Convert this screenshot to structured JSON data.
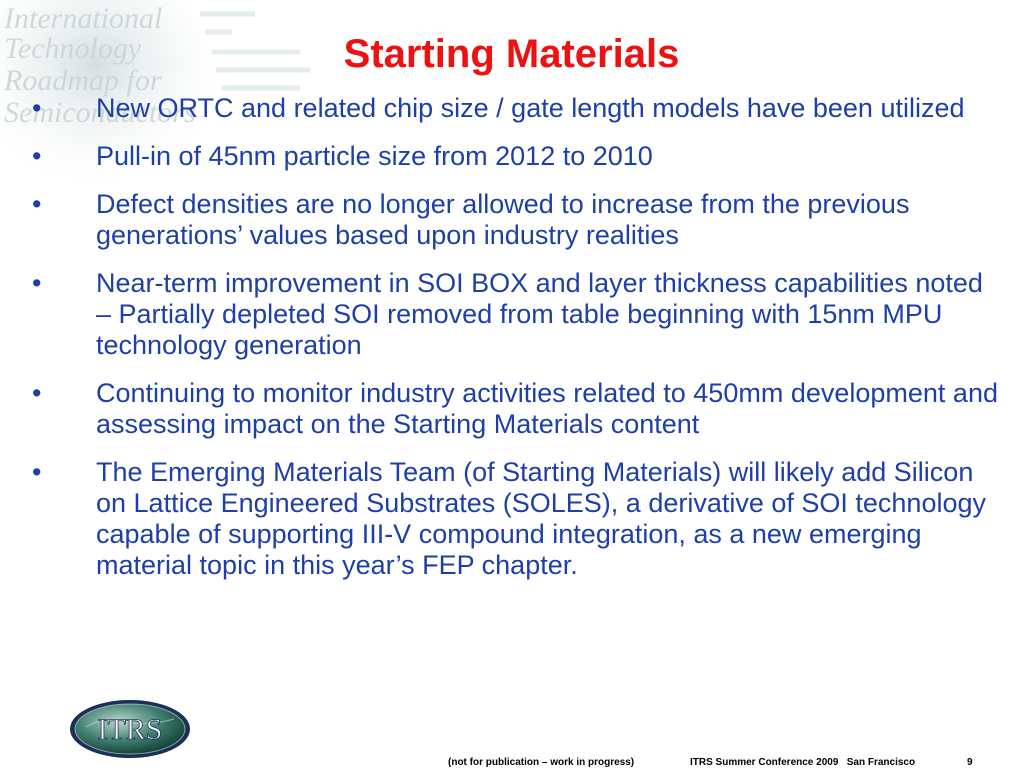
{
  "slide": {
    "title": "Starting Materials",
    "bullet_symbol": "•",
    "bullets": [
      "New ORTC and related chip size / gate length models have been utilized",
      "Pull-in of 45nm particle size from 2012 to 2010",
      "Defect densities are no longer allowed to increase from the previous generations’ values based upon industry realities",
      "Near-term improvement in SOI BOX and layer thickness capabilities noted – Partially depleted SOI removed from table beginning with 15nm MPU technology generation",
      "Continuing to monitor industry activities related to 450mm development and assessing impact on the Starting Materials content",
      "The Emerging Materials Team (of Starting Materials) will likely add Silicon on Lattice Engineered Substrates (SOLES), a derivative of SOI technology capable of supporting III-V compound integration, as a new emerging material topic in this year’s FEP chapter."
    ]
  },
  "watermark": {
    "lines": [
      "International",
      "Technology",
      "Roadmap for",
      "Semiconductors"
    ]
  },
  "logo": {
    "text": "ITRS"
  },
  "footer": {
    "note": "(not for publication – work in progress)",
    "conference": "ITRS Summer Conference 2009   San Francisco",
    "page": "9"
  },
  "colors": {
    "title": "#ee1111",
    "body_text": "#1e3fa8",
    "footer_text": "#000000",
    "background": "#ffffff"
  }
}
